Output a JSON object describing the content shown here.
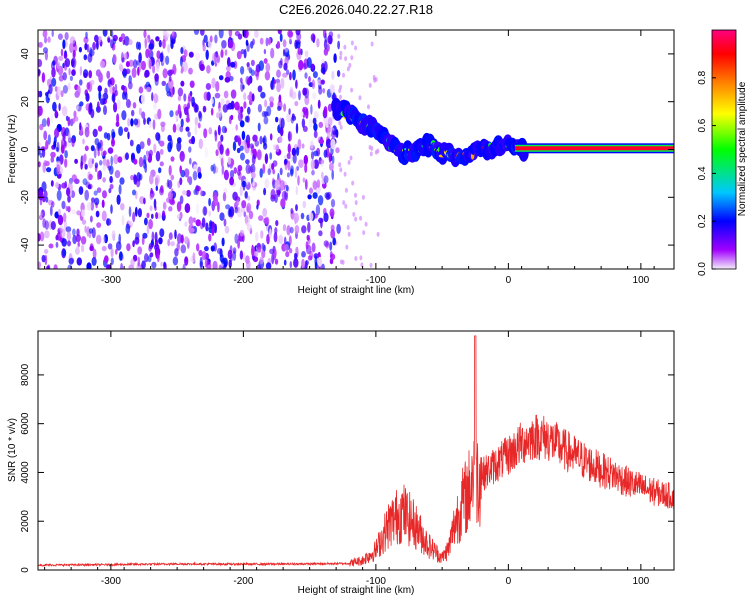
{
  "title": "C2E6.2026.040.22.27.R18",
  "chart_data": [
    {
      "type": "heatmap",
      "xlabel": "Height of straight line (km)",
      "ylabel": "Frequency (Hz)",
      "xlim": [
        -355,
        125
      ],
      "ylim": [
        -50,
        50
      ],
      "xticks": [
        -300,
        -200,
        -100,
        0,
        100
      ],
      "xtick_labels": [
        "-300",
        "-200",
        "-100",
        "0",
        "100"
      ],
      "yticks": [
        -40,
        -20,
        0,
        20,
        40
      ],
      "ytick_labels": [
        "-40",
        "-20",
        "0",
        "20",
        "40"
      ],
      "colorbar": {
        "label": "Normalized spectral amplitude",
        "range": [
          0,
          1
        ],
        "ticks": [
          0.0,
          0.2,
          0.4,
          0.6,
          0.8
        ],
        "tick_labels": [
          "0.0",
          "0.2",
          "0.4",
          "0.6",
          "0.8"
        ],
        "colors": [
          "#f4ecfa",
          "#a000ff",
          "#0000ff",
          "#00c8ff",
          "#00ff00",
          "#ffff00",
          "#ff8000",
          "#ff0000",
          "#ff0080"
        ]
      },
      "noise_region": {
        "x_range": [
          -355,
          -128
        ],
        "level": "0.0-0.3"
      },
      "signal_track": {
        "x": [
          -130,
          -120,
          -110,
          -100,
          -90,
          -80,
          -70,
          -60,
          -50,
          -40,
          -30,
          -20,
          -10,
          0,
          10,
          125
        ],
        "y": [
          17,
          15,
          11,
          8,
          3,
          -2,
          0,
          2,
          -1,
          -3,
          -2,
          0,
          1,
          2,
          0.5,
          0.5
        ]
      },
      "steady_line": {
        "x_range": [
          5,
          125
        ],
        "frequency": 0.5,
        "amplitude": 1.0
      }
    },
    {
      "type": "line",
      "xlabel": "Height of straight line (km)",
      "ylabel": "SNR (10 * v/v)",
      "xlim": [
        -355,
        125
      ],
      "ylim": [
        0,
        9800
      ],
      "xticks": [
        -300,
        -200,
        -100,
        0,
        100
      ],
      "xtick_labels": [
        "-300",
        "-200",
        "-100",
        "0",
        "100"
      ],
      "yticks": [
        0,
        2000,
        4000,
        6000,
        8000
      ],
      "ytick_labels": [
        "0",
        "2000",
        "4000",
        "6000",
        "8000"
      ],
      "series": [
        {
          "name": "SNR",
          "color": "#e82828",
          "x": [
            -355,
            -300,
            -250,
            -200,
            -150,
            -120,
            -110,
            -100,
            -90,
            -80,
            -75,
            -70,
            -60,
            -50,
            -45,
            -40,
            -35,
            -30,
            -26,
            -25,
            -24,
            -20,
            -10,
            0,
            10,
            20,
            30,
            40,
            50,
            60,
            70,
            80,
            90,
            100,
            110,
            125
          ],
          "y": [
            200,
            220,
            250,
            240,
            250,
            270,
            400,
            800,
            1900,
            2400,
            2100,
            1800,
            1000,
            500,
            900,
            2000,
            2700,
            3200,
            4200,
            9600,
            3800,
            3900,
            4300,
            4700,
            5200,
            5500,
            5400,
            5000,
            4700,
            4400,
            4100,
            3900,
            3600,
            3400,
            3200,
            3000
          ]
        }
      ]
    }
  ]
}
